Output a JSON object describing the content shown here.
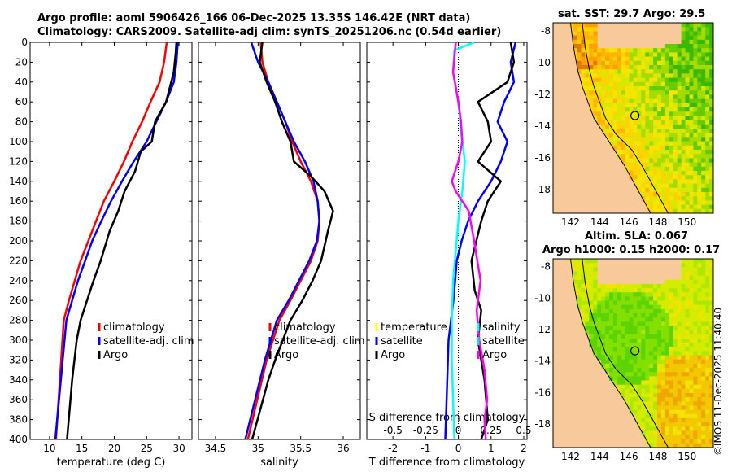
{
  "figure": {
    "title_line1": "Argo profile: aoml 5906426_166 06-Dec-2025 13.35S 146.42E (NRT data)",
    "title_line2": "Climatology: CARS2009. Satellite-adj clim: synTS_20251206.nc (0.54d earlier)",
    "sst_title": "sat. SST: 29.7 Argo: 29.5",
    "sla_title_line1": "Altim. SLA: 0.067",
    "sla_title_line2": "Argo h1000: 0.15 h2000: 0.17",
    "credit": "©IMOS 11-Dec-2025 11:40:40"
  },
  "colors": {
    "climatology": "#ff0000",
    "satellite": "#0000ff",
    "argo": "#000000",
    "temperature": "#ffff00",
    "t_satellite": "#0000ff",
    "t_argo": "#000000",
    "salinity": "#00ffff",
    "s_satellite": "#00e5e5",
    "s_argo": "#ff00ff",
    "land": "#f8c99a"
  },
  "chart_data": [
    {
      "type": "line",
      "id": "temperature",
      "xlabel": "temperature (deg C)",
      "ylabel": "",
      "xlim": [
        7,
        32
      ],
      "ylim": [
        400,
        0
      ],
      "xticks": [
        10,
        15,
        20,
        25,
        30
      ],
      "yticks": [
        0,
        20,
        40,
        60,
        80,
        100,
        120,
        140,
        160,
        180,
        200,
        220,
        240,
        260,
        280,
        300,
        320,
        340,
        360,
        380,
        400
      ],
      "legend": {
        "position": "bottom-right",
        "entries": [
          "climatology",
          "satellite-adj. clim",
          "Argo"
        ]
      },
      "series": [
        {
          "name": "climatology",
          "color": "red",
          "x": [
            28.1,
            27.7,
            27.0,
            25.6,
            24.3,
            22.8,
            21.5,
            20.0,
            18.4,
            17.2,
            16.0,
            14.8,
            13.9,
            13.0,
            12.2,
            11.0
          ],
          "y": [
            0,
            20,
            40,
            60,
            80,
            100,
            120,
            140,
            160,
            180,
            200,
            220,
            240,
            260,
            280,
            400
          ]
        },
        {
          "name": "satellite-adj. clim",
          "color": "blue",
          "x": [
            29.8,
            29.6,
            29.2,
            28.0,
            26.5,
            25.0,
            23.0,
            21.2,
            19.5,
            18.0,
            16.6,
            15.5,
            14.4,
            13.5,
            12.6,
            10.9
          ],
          "y": [
            0,
            20,
            40,
            60,
            80,
            100,
            120,
            140,
            160,
            180,
            200,
            220,
            240,
            260,
            280,
            400
          ]
        },
        {
          "name": "Argo",
          "color": "black",
          "x": [
            29.6,
            29.5,
            29.2,
            28.0,
            26.3,
            25.8,
            24.1,
            23.2,
            21.6,
            20.6,
            19.3,
            17.9,
            16.8,
            15.8,
            14.8,
            14.2,
            13.5,
            12.7
          ],
          "y": [
            0,
            10,
            30,
            60,
            80,
            100,
            110,
            130,
            150,
            170,
            190,
            220,
            240,
            260,
            280,
            300,
            340,
            400
          ]
        }
      ]
    },
    {
      "type": "line",
      "id": "salinity",
      "xlabel": "salinity",
      "ylabel": "",
      "xlim": [
        34.3,
        36.2
      ],
      "ylim": [
        400,
        0
      ],
      "xticks": [
        34.5,
        35,
        35.5,
        36
      ],
      "legend": {
        "position": "bottom-right",
        "entries": [
          "climatology",
          "satellite-adj. clim",
          "Argo"
        ]
      },
      "series": [
        {
          "name": "climatology",
          "color": "red",
          "x": [
            35.03,
            35.05,
            35.12,
            35.22,
            35.32,
            35.4,
            35.5,
            35.62,
            35.7,
            35.72,
            35.7,
            35.62,
            35.5,
            35.38,
            35.25,
            35.1,
            34.88
          ],
          "y": [
            0,
            20,
            40,
            60,
            80,
            100,
            120,
            140,
            160,
            180,
            200,
            220,
            240,
            260,
            280,
            320,
            400
          ]
        },
        {
          "name": "satellite-adj. clim",
          "color": "blue",
          "x": [
            34.92,
            35.0,
            35.12,
            35.22,
            35.32,
            35.42,
            35.55,
            35.65,
            35.7,
            35.72,
            35.69,
            35.6,
            35.48,
            35.36,
            35.22,
            35.08,
            34.85
          ],
          "y": [
            0,
            20,
            40,
            60,
            80,
            100,
            120,
            140,
            160,
            180,
            200,
            220,
            240,
            260,
            280,
            320,
            400
          ]
        },
        {
          "name": "Argo",
          "color": "black",
          "x": [
            35.05,
            35.02,
            35.1,
            35.2,
            35.28,
            35.38,
            35.42,
            35.62,
            35.78,
            35.88,
            35.82,
            35.74,
            35.64,
            35.52,
            35.38,
            35.2,
            35.12,
            34.93
          ],
          "y": [
            0,
            20,
            40,
            60,
            80,
            100,
            120,
            135,
            150,
            170,
            190,
            220,
            240,
            260,
            280,
            320,
            340,
            400
          ]
        }
      ]
    },
    {
      "type": "line",
      "id": "difference",
      "xlabel": "T difference from climatology",
      "xlabel_top": "S difference from climatology",
      "xlim": [
        -2.8,
        2.1
      ],
      "ylim": [
        400,
        0
      ],
      "xticks": [
        -2,
        -1,
        0,
        1,
        2
      ],
      "s_xlim": [
        -0.7,
        0.525
      ],
      "s_xticks": [
        -0.5,
        -0.25,
        0,
        0.25,
        0.5
      ],
      "s_xtick_labels": [
        "-0.5",
        "-0.25",
        "0",
        "0.25",
        "0.5"
      ],
      "legend_t": {
        "position": "bottom-left",
        "entries": [
          "temperature",
          "satellite",
          "Argo"
        ]
      },
      "legend_s": {
        "position": "bottom-right",
        "entries": [
          "salinity",
          "satellite",
          "Argo"
        ]
      },
      "series": [
        {
          "name": "T satellite",
          "scale": "T",
          "color": "blue",
          "x": [
            1.75,
            1.6,
            1.7,
            1.4,
            1.2,
            1.5,
            1.3,
            1.0,
            0.6,
            0.3,
            0.1,
            -0.05,
            -0.1,
            -0.15,
            -0.3,
            -0.4
          ],
          "y": [
            0,
            20,
            40,
            60,
            80,
            100,
            120,
            140,
            160,
            180,
            200,
            220,
            240,
            260,
            300,
            400
          ]
        },
        {
          "name": "T Argo",
          "scale": "T",
          "color": "black",
          "x": [
            1.6,
            1.7,
            1.5,
            0.6,
            0.9,
            1.0,
            0.6,
            1.3,
            0.9,
            0.7,
            0.4,
            0.5,
            0.7,
            0.6,
            0.8,
            0.9,
            0.7
          ],
          "y": [
            0,
            20,
            40,
            60,
            80,
            100,
            120,
            140,
            160,
            180,
            220,
            250,
            270,
            300,
            340,
            380,
            400
          ]
        },
        {
          "name": "S satellite",
          "scale": "S",
          "color": "cyan",
          "x": [
            0.12,
            -0.03,
            -0.04,
            0.0,
            0.02,
            0.05,
            0.03,
            0.0,
            -0.02,
            -0.04,
            -0.05,
            -0.05,
            -0.04,
            -0.03
          ],
          "y": [
            0,
            8,
            30,
            60,
            90,
            120,
            150,
            180,
            210,
            240,
            280,
            320,
            360,
            400
          ]
        },
        {
          "name": "S Argo",
          "scale": "S",
          "color": "magenta",
          "x": [
            -0.02,
            -0.04,
            0.0,
            0.02,
            0.03,
            0.0,
            -0.05,
            -0.02,
            0.08,
            0.12,
            0.17,
            0.14,
            0.16,
            0.2,
            0.22,
            0.2,
            0.21
          ],
          "y": [
            0,
            30,
            60,
            80,
            100,
            120,
            140,
            150,
            170,
            200,
            240,
            270,
            300,
            330,
            360,
            380,
            400
          ]
        }
      ]
    },
    {
      "type": "heatmap",
      "id": "sst-map",
      "title": "sat. SST: 29.7 Argo: 29.5",
      "xlim": [
        140.8,
        151.8
      ],
      "ylim": [
        -19.5,
        -7.5
      ],
      "xticks": [
        142,
        144,
        146,
        148,
        150
      ],
      "yticks": [
        -8,
        -10,
        -12,
        -14,
        -16,
        -18
      ],
      "marker": {
        "lon": 146.42,
        "lat": -13.35
      },
      "colors": [
        "#e07800",
        "#ff9e00",
        "#ffb400",
        "#ffd200",
        "#f4e600",
        "#d8e800",
        "#a4dc00",
        "#66cc00",
        "#3cb800"
      ]
    },
    {
      "type": "heatmap",
      "id": "sla-map",
      "title": "Altim. SLA: 0.067",
      "xlim": [
        140.8,
        151.8
      ],
      "ylim": [
        -19.5,
        -7.5
      ],
      "xticks": [
        142,
        144,
        146,
        148,
        150
      ],
      "yticks": [
        -8,
        -10,
        -12,
        -14,
        -16,
        -18
      ],
      "marker": {
        "lon": 146.42,
        "lat": -13.35
      },
      "colors": [
        "#1aa81a",
        "#34c21a",
        "#5cd400",
        "#84e000",
        "#aee800",
        "#d4ec00",
        "#f0e400",
        "#f4c800",
        "#f0a800"
      ]
    }
  ]
}
